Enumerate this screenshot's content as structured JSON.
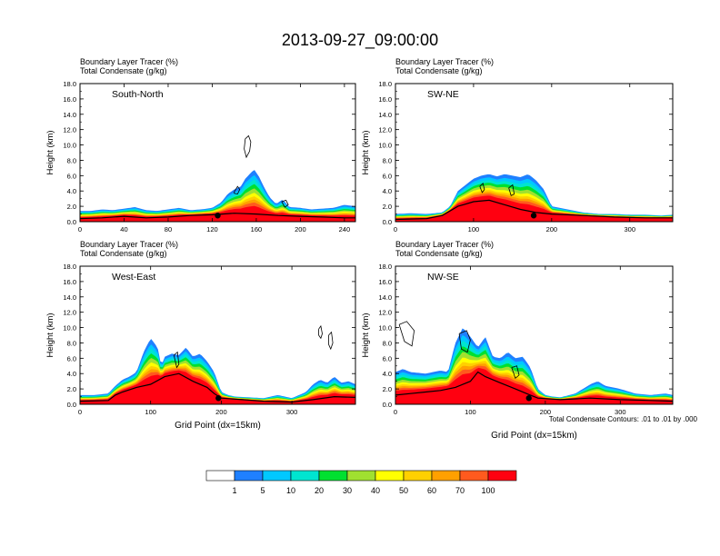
{
  "title": "2013-09-27_09:00:00",
  "colors": {
    "levels": [
      "#ffffff",
      "#1f80ff",
      "#00c8ff",
      "#00e5d0",
      "#00e030",
      "#a0e030",
      "#ffff00",
      "#ffd000",
      "#ffa000",
      "#ff5a1e",
      "#ff0010"
    ]
  },
  "colorbar": {
    "labels": [
      "1",
      "5",
      "10",
      "20",
      "30",
      "40",
      "50",
      "60",
      "70",
      "100"
    ]
  },
  "contour_note": "Total Condensate Contours: .01 to .01 by .000",
  "chart_data": [
    {
      "type": "heatmap",
      "subtitle1": "Boundary Layer Tracer   (%)",
      "subtitle2": "Total Condensate   (g/kg)",
      "panel_label": "South-North",
      "ylabel": "Height (km)",
      "xlabel": "",
      "xlim": [
        0,
        250
      ],
      "ylim": [
        0,
        18
      ],
      "xticks": [
        "0",
        "40",
        "80",
        "120",
        "160",
        "200",
        "240"
      ],
      "xtick_values": [
        0,
        40,
        80,
        120,
        160,
        200,
        240
      ],
      "yticks": [
        "0.0",
        "2.0",
        "4.0",
        "6.0",
        "8.0",
        "10.0",
        "12.0",
        "14.0",
        "16.0",
        "18.0"
      ],
      "profile": {
        "x": [
          0,
          10,
          20,
          30,
          40,
          50,
          60,
          70,
          80,
          90,
          100,
          110,
          120,
          128,
          134,
          140,
          146,
          150,
          154,
          158,
          162,
          166,
          172,
          178,
          184,
          190,
          200,
          210,
          220,
          230,
          240,
          250
        ],
        "top": [
          1.4,
          1.4,
          1.6,
          1.5,
          1.7,
          1.9,
          1.5,
          1.4,
          1.6,
          1.8,
          1.5,
          1.6,
          1.8,
          2.5,
          3.6,
          4.2,
          4.6,
          5.6,
          6.2,
          6.8,
          6.0,
          4.8,
          3.2,
          2.3,
          2.9,
          1.9,
          1.8,
          1.6,
          1.7,
          1.8,
          2.2,
          2.0
        ]
      },
      "terrain": {
        "x": [
          0,
          20,
          40,
          60,
          80,
          100,
          120,
          140,
          160,
          180,
          200,
          220,
          240,
          250
        ],
        "height": [
          0.4,
          0.5,
          0.7,
          0.5,
          0.6,
          0.8,
          0.9,
          1.1,
          1.0,
          0.8,
          0.7,
          0.6,
          0.5,
          0.5
        ]
      },
      "marker_x": 125,
      "contours": [
        {
          "x": [
            150,
            153,
            155,
            154,
            151,
            149,
            150
          ],
          "y": [
            10.8,
            11.2,
            10.4,
            9.2,
            8.4,
            9.5,
            10.8
          ]
        },
        {
          "x": [
            140,
            143,
            145,
            143,
            140,
            140
          ],
          "y": [
            3.9,
            4.6,
            4.2,
            3.6,
            3.7,
            3.9
          ]
        },
        {
          "x": [
            183,
            187,
            189,
            186,
            183
          ],
          "y": [
            2.6,
            2.8,
            2.2,
            1.9,
            2.6
          ]
        }
      ]
    },
    {
      "type": "heatmap",
      "subtitle1": "Boundary Layer Tracer   (%)",
      "subtitle2": "Total Condensate   (g/kg)",
      "panel_label": "SW-NE",
      "ylabel": "Height (km)",
      "xlabel": "",
      "xlim": [
        0,
        355
      ],
      "ylim": [
        0,
        18
      ],
      "xticks": [
        "0",
        "100",
        "200",
        "300"
      ],
      "xtick_values": [
        0,
        100,
        200,
        300
      ],
      "yticks": [
        "0.0",
        "2.0",
        "4.0",
        "6.0",
        "8.0",
        "10.0",
        "12.0",
        "14.0",
        "16.0",
        "18.0"
      ],
      "profile": {
        "x": [
          0,
          20,
          40,
          60,
          70,
          80,
          90,
          100,
          110,
          120,
          130,
          140,
          150,
          160,
          170,
          180,
          190,
          200,
          220,
          240,
          260,
          280,
          300,
          320,
          340,
          355
        ],
        "top": [
          1.0,
          1.1,
          1.0,
          1.2,
          2.0,
          4.0,
          4.8,
          5.6,
          6.0,
          6.2,
          5.9,
          6.2,
          6.0,
          5.8,
          6.2,
          5.4,
          4.2,
          2.0,
          1.6,
          1.2,
          1.0,
          1.0,
          0.9,
          0.9,
          0.8,
          0.9
        ]
      },
      "terrain": {
        "x": [
          0,
          40,
          60,
          80,
          100,
          120,
          140,
          160,
          180,
          200,
          240,
          280,
          320,
          355
        ],
        "height": [
          0.3,
          0.4,
          0.8,
          2.0,
          2.6,
          2.8,
          2.2,
          1.6,
          1.2,
          1.0,
          0.8,
          0.6,
          0.5,
          0.5
        ]
      },
      "marker_x": 177,
      "contours": [
        {
          "x": [
            108,
            112,
            114,
            111,
            108
          ],
          "y": [
            4.6,
            5.0,
            4.2,
            3.8,
            4.6
          ]
        },
        {
          "x": [
            145,
            150,
            152,
            148,
            145
          ],
          "y": [
            4.4,
            4.8,
            3.6,
            3.4,
            4.4
          ]
        }
      ]
    },
    {
      "type": "heatmap",
      "subtitle1": "Boundary Layer Tracer   (%)",
      "subtitle2": "Total Condensate   (g/kg)",
      "panel_label": "West-East",
      "ylabel": "Height (km)",
      "xlabel": "Grid Point (dx=15km)",
      "xlim": [
        0,
        390
      ],
      "ylim": [
        0,
        18
      ],
      "xticks": [
        "0",
        "100",
        "200",
        "300"
      ],
      "xtick_values": [
        0,
        100,
        200,
        300
      ],
      "yticks": [
        "0.0",
        "2.0",
        "4.0",
        "6.0",
        "8.0",
        "10.0",
        "12.0",
        "14.0",
        "16.0",
        "18.0"
      ],
      "profile": {
        "x": [
          0,
          20,
          40,
          50,
          60,
          70,
          80,
          90,
          100,
          110,
          115,
          120,
          130,
          140,
          150,
          160,
          170,
          180,
          190,
          200,
          210,
          220,
          240,
          260,
          280,
          300,
          320,
          330,
          340,
          350,
          360,
          370,
          380,
          390
        ],
        "top": [
          1.2,
          1.2,
          1.4,
          2.4,
          3.2,
          3.6,
          4.2,
          6.8,
          8.6,
          7.4,
          5.0,
          6.2,
          6.6,
          6.4,
          7.4,
          6.2,
          6.6,
          5.6,
          4.2,
          1.6,
          1.2,
          1.0,
          0.9,
          0.8,
          1.2,
          0.8,
          1.6,
          2.6,
          3.2,
          2.8,
          3.6,
          2.8,
          3.0,
          2.6
        ]
      },
      "terrain": {
        "x": [
          0,
          40,
          50,
          60,
          80,
          100,
          120,
          140,
          160,
          180,
          190,
          200,
          230,
          260,
          300,
          330,
          360,
          390
        ],
        "height": [
          0.4,
          0.5,
          1.2,
          1.6,
          2.2,
          2.6,
          3.6,
          4.0,
          3.0,
          2.2,
          1.4,
          0.8,
          0.6,
          0.4,
          0.3,
          0.6,
          1.0,
          0.9
        ]
      },
      "marker_x": 196,
      "contours": [
        {
          "x": [
            338,
            341,
            343,
            341,
            338,
            338
          ],
          "y": [
            9.8,
            10.2,
            9.2,
            8.6,
            9.0,
            9.8
          ]
        },
        {
          "x": [
            352,
            356,
            358,
            355,
            352,
            352
          ],
          "y": [
            9.0,
            9.4,
            8.0,
            7.2,
            7.8,
            9.0
          ]
        },
        {
          "x": [
            133,
            138,
            140,
            137,
            133
          ],
          "y": [
            6.4,
            6.8,
            5.2,
            4.8,
            6.4
          ]
        }
      ]
    },
    {
      "type": "heatmap",
      "subtitle1": "Boundary Layer Tracer   (%)",
      "subtitle2": "Total Condensate   (g/kg)",
      "panel_label": "NW-SE",
      "ylabel": "Height (km)",
      "xlabel": "Grid Point (dx=15km)",
      "xlim": [
        0,
        370
      ],
      "ylim": [
        0,
        18
      ],
      "xticks": [
        "0",
        "100",
        "200",
        "300"
      ],
      "xtick_values": [
        0,
        100,
        200,
        300
      ],
      "yticks": [
        "0.0",
        "2.0",
        "4.0",
        "6.0",
        "8.0",
        "10.0",
        "12.0",
        "14.0",
        "16.0",
        "18.0"
      ],
      "profile": {
        "x": [
          0,
          10,
          20,
          40,
          60,
          70,
          80,
          90,
          100,
          110,
          120,
          130,
          140,
          150,
          160,
          170,
          180,
          190,
          200,
          210,
          220,
          240,
          260,
          270,
          280,
          300,
          320,
          340,
          360,
          370
        ],
        "top": [
          4.2,
          4.6,
          4.2,
          4.0,
          4.4,
          4.2,
          8.0,
          10.0,
          8.8,
          7.4,
          8.8,
          6.2,
          6.0,
          6.8,
          6.0,
          6.2,
          4.8,
          2.0,
          1.2,
          1.0,
          0.9,
          1.4,
          2.6,
          3.0,
          2.4,
          2.0,
          1.4,
          1.2,
          1.4,
          1.2
        ]
      },
      "terrain": {
        "x": [
          0,
          20,
          40,
          60,
          80,
          100,
          110,
          120,
          140,
          160,
          180,
          190,
          220,
          260,
          300,
          340,
          370
        ],
        "height": [
          1.2,
          1.4,
          1.6,
          1.8,
          2.2,
          3.0,
          4.2,
          3.6,
          2.8,
          2.0,
          1.2,
          0.8,
          0.6,
          0.8,
          0.6,
          0.5,
          0.4
        ]
      },
      "marker_x": 178,
      "contours": [
        {
          "x": [
            5,
            15,
            25,
            22,
            12,
            5
          ],
          "y": [
            10.4,
            10.8,
            9.6,
            7.6,
            8.2,
            10.4
          ]
        },
        {
          "x": [
            85,
            95,
            100,
            96,
            88,
            85
          ],
          "y": [
            9.2,
            9.6,
            8.4,
            6.8,
            7.2,
            9.2
          ]
        },
        {
          "x": [
            155,
            162,
            165,
            160,
            155
          ],
          "y": [
            4.8,
            5.0,
            3.8,
            3.4,
            4.8
          ]
        }
      ]
    }
  ]
}
